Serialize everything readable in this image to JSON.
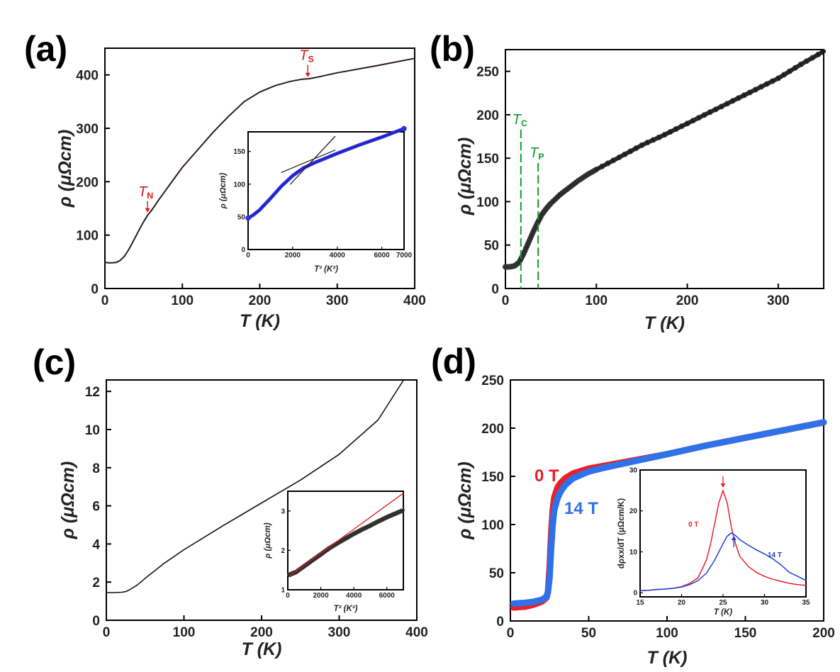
{
  "chart_data": [
    {
      "panel_label": "(a)",
      "type": "line",
      "xlabel": "T (K)",
      "ylabel": "ρ (μΩcm)",
      "xlim": [
        0,
        400
      ],
      "ylim": [
        0,
        450
      ],
      "xticks": [
        "0",
        "100",
        "200",
        "300",
        "400"
      ],
      "yticks": [
        "0",
        "100",
        "200",
        "300",
        "400"
      ],
      "series": [
        {
          "color": "#2a1a1a",
          "x": [
            0,
            5,
            10,
            15,
            20,
            25,
            30,
            35,
            40,
            45,
            50,
            55,
            60,
            70,
            80,
            90,
            100,
            120,
            140,
            160,
            180,
            200,
            220,
            240,
            255,
            265,
            275,
            300,
            350,
            400
          ],
          "y": [
            49,
            48,
            48,
            49,
            53,
            60,
            71,
            84,
            98,
            112,
            125,
            137,
            146,
            167,
            187,
            207,
            227,
            260,
            293,
            323,
            350,
            368,
            380,
            388,
            392,
            393,
            396,
            404,
            417,
            431
          ]
        }
      ],
      "annotations": [
        {
          "main": "T",
          "sub": "N",
          "color": "#e0171b",
          "x": 55,
          "y": 137
        },
        {
          "main": "T",
          "sub": "S",
          "color": "#e0171b",
          "x": 262,
          "y": 392
        }
      ],
      "inset": {
        "type": "line",
        "xlabel": "T² (K²)",
        "ylabel": "ρ (μΩcm)",
        "xlim": [
          0,
          7000
        ],
        "ylim": [
          0,
          180
        ],
        "xticks": [
          "0",
          "2000",
          "4000",
          "6000",
          "7000"
        ],
        "yticks": [
          "0",
          "50",
          "100",
          "150"
        ],
        "series": [
          {
            "color": "#2e2ee8",
            "x": [
              0,
              200,
              500,
              1000,
              1500,
              2000,
              2500,
              3000,
              3500,
              4000,
              5000,
              6000,
              7000
            ],
            "y": [
              48,
              52,
              60,
              78,
              97,
              113,
              125,
              133,
              140,
              147,
              160,
              172,
              185
            ]
          }
        ],
        "fit_lines": [
          {
            "x": [
              1500,
              3900
            ],
            "y": [
              118,
              152
            ]
          },
          {
            "x": [
              1900,
              3900
            ],
            "y": [
              100,
              173
            ]
          }
        ]
      }
    },
    {
      "panel_label": "(b)",
      "type": "scatter",
      "xlabel": "T (K)",
      "ylabel": "ρ (μΩcm)",
      "xlim": [
        0,
        350
      ],
      "ylim": [
        0,
        275
      ],
      "xticks": [
        "0",
        "100",
        "200",
        "300"
      ],
      "yticks": [
        "0",
        "50",
        "100",
        "150",
        "200",
        "250"
      ],
      "series": [
        {
          "color": "#1a1a1a",
          "x": [
            0,
            5,
            10,
            15,
            20,
            25,
            30,
            35,
            40,
            45,
            50,
            60,
            70,
            80,
            90,
            100,
            125,
            150,
            175,
            200,
            225,
            250,
            275,
            300,
            325,
            350
          ],
          "y": [
            25,
            25,
            26,
            30,
            40,
            52,
            64,
            75,
            85,
            92,
            98,
            108,
            116,
            124,
            131,
            137,
            151,
            165,
            177,
            190,
            203,
            216,
            229,
            242,
            258,
            273
          ]
        }
      ],
      "vlines": [
        {
          "x": 17,
          "color": "#139a2a",
          "label_main": "T",
          "label_sub": "C"
        },
        {
          "x": 36,
          "color": "#139a2a",
          "label_main": "T",
          "label_sub": "P"
        }
      ]
    },
    {
      "panel_label": "(c)",
      "type": "line",
      "xlabel": "T (K)",
      "ylabel": "ρ (μΩcm)",
      "xlim": [
        0,
        400
      ],
      "ylim": [
        0,
        12.6
      ],
      "xticks": [
        "0",
        "100",
        "200",
        "300",
        "400"
      ],
      "yticks": [
        "0",
        "2",
        "4",
        "6",
        "8",
        "10",
        "12"
      ],
      "series": [
        {
          "color": "#111111",
          "x": [
            0,
            10,
            20,
            25,
            30,
            40,
            50,
            75,
            100,
            150,
            200,
            250,
            300,
            350,
            383
          ],
          "y": [
            1.45,
            1.45,
            1.47,
            1.5,
            1.6,
            1.85,
            2.2,
            3.0,
            3.7,
            4.95,
            6.15,
            7.35,
            8.7,
            10.5,
            12.6
          ]
        }
      ],
      "inset": {
        "type": "scatter",
        "xlabel": "T² (K²)",
        "ylabel": "ρ (μΩcm)",
        "xlim": [
          0,
          7000
        ],
        "ylim": [
          1,
          3.5
        ],
        "xticks": [
          "0",
          "2000",
          "4000",
          "6000"
        ],
        "yticks": [
          "1",
          "2",
          "3"
        ],
        "series": [
          {
            "color": "#222222",
            "x": [
              100,
              500,
              1000,
              1500,
              2000,
              2500,
              3000,
              3500,
              4000,
              4500,
              5000,
              5500,
              6000,
              6500,
              7000
            ],
            "y": [
              1.38,
              1.45,
              1.6,
              1.75,
              1.9,
              2.05,
              2.18,
              2.3,
              2.42,
              2.53,
              2.63,
              2.74,
              2.84,
              2.93,
              3.02
            ]
          }
        ],
        "fit_lines": [
          {
            "x": [
              100,
              7000
            ],
            "y": [
              1.35,
              3.45
            ],
            "color": "#e0171b"
          }
        ]
      }
    },
    {
      "panel_label": "(d)",
      "type": "scatter",
      "xlabel": "T (K)",
      "ylabel": "ρ (μΩcm)",
      "xlim": [
        0,
        200
      ],
      "ylim": [
        0,
        250
      ],
      "xticks": [
        "0",
        "50",
        "100",
        "150",
        "200"
      ],
      "yticks": [
        "0",
        "50",
        "100",
        "150",
        "200",
        "250"
      ],
      "series": [
        {
          "name": "0 T",
          "color": "#e8202a",
          "x": [
            2,
            10,
            15,
            20,
            23,
            24,
            25,
            26,
            27,
            28,
            30,
            32,
            35,
            40,
            50,
            60,
            80,
            100,
            125,
            150,
            175,
            200
          ],
          "y": [
            14,
            15,
            17,
            20,
            24,
            30,
            55,
            90,
            115,
            128,
            138,
            143,
            148,
            153,
            158,
            161,
            167,
            173,
            182,
            190,
            198,
            206
          ]
        },
        {
          "name": "14 T",
          "color": "#2f72e8",
          "x": [
            2,
            10,
            15,
            20,
            23,
            24,
            25,
            26,
            27,
            28,
            30,
            32,
            35,
            40,
            50,
            60,
            80,
            100,
            125,
            150,
            175,
            200
          ],
          "y": [
            18,
            19,
            20,
            22,
            25,
            30,
            45,
            75,
            100,
            115,
            127,
            134,
            141,
            148,
            155,
            159,
            166,
            173,
            182,
            190,
            198,
            206
          ]
        }
      ],
      "inset": {
        "type": "line",
        "xlabel": "T (K)",
        "ylabel": "dρxx/dT (μΩcm/K)",
        "xlim": [
          15,
          35
        ],
        "ylim": [
          -1,
          30
        ],
        "xticks": [
          "15",
          "20",
          "25",
          "30",
          "35"
        ],
        "yticks": [
          "0",
          "10",
          "20",
          "30"
        ],
        "series": [
          {
            "name": "0 T",
            "color": "#e8202a",
            "x": [
              15,
              16,
              17,
              18,
              19,
              20,
              21,
              22,
              23,
              23.5,
              24,
              24.5,
              25,
              25.5,
              26,
              26.5,
              27,
              28,
              29,
              30,
              31,
              32,
              33,
              34,
              35
            ],
            "y": [
              0.5,
              0.6,
              0.8,
              0.9,
              1.1,
              1.5,
              2.3,
              3.7,
              8,
              12,
              17,
              22,
              25,
              22,
              16,
              12,
              9,
              6.5,
              5,
              4,
              3.3,
              2.8,
              2.3,
              2,
              1.8
            ]
          },
          {
            "name": "14 T",
            "color": "#1e3fd6",
            "x": [
              15,
              16,
              17,
              18,
              19,
              20,
              21,
              22,
              23,
              24,
              25,
              25.5,
              26,
              26.5,
              27,
              28,
              29,
              30,
              31,
              32,
              33,
              34,
              35
            ],
            "y": [
              0.5,
              0.6,
              0.8,
              0.9,
              1.1,
              1.4,
              2,
              3,
              4.8,
              8,
              12,
              13.8,
              14.6,
              14,
              13,
              11.7,
              10.5,
              9.5,
              8.3,
              6.8,
              5,
              4,
              3
            ]
          }
        ],
        "arrows": [
          {
            "x": 25,
            "color": "#e8202a"
          },
          {
            "x": 26.3,
            "color": "#1e3fd6"
          }
        ]
      }
    }
  ]
}
